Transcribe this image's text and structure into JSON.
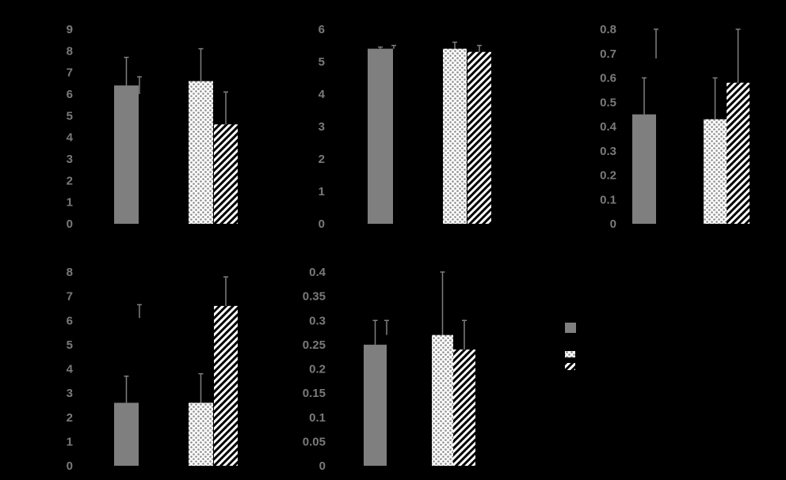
{
  "colors": {
    "background": "#000000",
    "solid_bar": "#7f7f7f",
    "dotted_bar_fill": "#ffffff",
    "dotted_bar_dots": "#8c8c8c",
    "hatched_bar_fill": "#ffffff",
    "hatched_bar_stripes": "#000000",
    "error_bar": "#7f7f7f",
    "tick_label": "#7a7a7a"
  },
  "chart_data": [
    {
      "type": "bar",
      "ylim": [
        0,
        9
      ],
      "yticks": [
        "0",
        "1",
        "2",
        "3",
        "4",
        "5",
        "6",
        "7",
        "8",
        "9"
      ],
      "groups": [
        {
          "bars": [
            {
              "pattern": "solid",
              "value": 6.4,
              "error": 1.3
            },
            {
              "pattern": "none",
              "value": 6.0,
              "error": 0.8
            }
          ]
        },
        {
          "bars": [
            {
              "pattern": "dotted",
              "value": 6.6,
              "error": 1.5
            },
            {
              "pattern": "hatched",
              "value": 4.6,
              "error": 1.5
            }
          ]
        }
      ]
    },
    {
      "type": "bar",
      "ylim": [
        0,
        6
      ],
      "yticks": [
        "0",
        "1",
        "2",
        "3",
        "4",
        "5",
        "6"
      ],
      "groups": [
        {
          "bars": [
            {
              "pattern": "solid",
              "value": 5.4,
              "error": 0.05
            },
            {
              "pattern": "none",
              "value": 5.4,
              "error": 0.1
            }
          ]
        },
        {
          "bars": [
            {
              "pattern": "dotted",
              "value": 5.4,
              "error": 0.2
            },
            {
              "pattern": "hatched",
              "value": 5.3,
              "error": 0.2
            }
          ]
        }
      ]
    },
    {
      "type": "bar",
      "ylim": [
        0,
        0.8
      ],
      "yticks": [
        "0",
        "0.1",
        "0.2",
        "0.3",
        "0.4",
        "0.5",
        "0.6",
        "0.7",
        "0.8"
      ],
      "groups": [
        {
          "bars": [
            {
              "pattern": "solid",
              "value": 0.45,
              "error": 0.15
            },
            {
              "pattern": "none",
              "value": 0.68,
              "error": 0.12
            }
          ]
        },
        {
          "bars": [
            {
              "pattern": "dotted",
              "value": 0.43,
              "error": 0.17
            },
            {
              "pattern": "hatched",
              "value": 0.58,
              "error": 0.22
            }
          ]
        }
      ]
    },
    {
      "type": "bar",
      "ylim": [
        0,
        8
      ],
      "yticks": [
        "0",
        "1",
        "2",
        "3",
        "4",
        "5",
        "6",
        "7",
        "8"
      ],
      "groups": [
        {
          "bars": [
            {
              "pattern": "solid",
              "value": 2.6,
              "error": 1.1
            },
            {
              "pattern": "none",
              "value": 6.1,
              "error": 0.55
            }
          ]
        },
        {
          "bars": [
            {
              "pattern": "dotted",
              "value": 2.6,
              "error": 1.2
            },
            {
              "pattern": "hatched",
              "value": 6.6,
              "error": 1.2
            }
          ]
        }
      ]
    },
    {
      "type": "bar",
      "ylim": [
        0,
        0.4
      ],
      "yticks": [
        "0",
        "0.05",
        "0.1",
        "0.15",
        "0.2",
        "0.25",
        "0.3",
        "0.35",
        "0.4"
      ],
      "groups": [
        {
          "bars": [
            {
              "pattern": "solid",
              "value": 0.25,
              "error": 0.05
            },
            {
              "pattern": "none",
              "value": 0.27,
              "error": 0.03
            }
          ]
        },
        {
          "bars": [
            {
              "pattern": "dotted",
              "value": 0.27,
              "error": 0.13
            },
            {
              "pattern": "hatched",
              "value": 0.24,
              "error": 0.06
            }
          ]
        }
      ]
    }
  ],
  "legend": {
    "placement": "bottom-right",
    "entries": [
      {
        "pattern": "solid"
      },
      {
        "pattern": "dotted"
      },
      {
        "pattern": "hatched"
      }
    ]
  }
}
